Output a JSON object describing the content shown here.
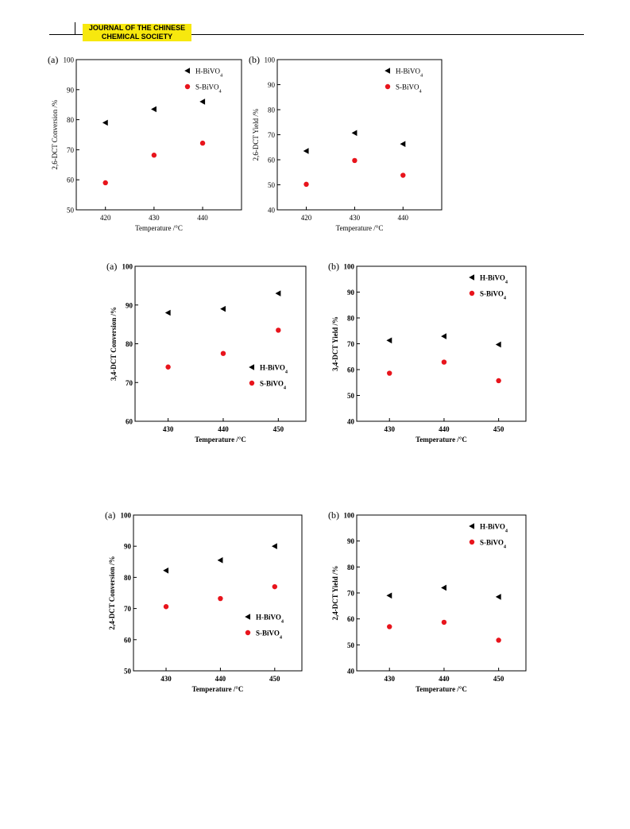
{
  "header": {
    "journal_line1": "JOURNAL OF THE CHINESE",
    "journal_line2": "CHEMICAL SOCIETY"
  },
  "colors": {
    "h_marker": "#000000",
    "s_marker": "#e8141c",
    "badge": "#f7e80e"
  },
  "chart_data": [
    {
      "panel": "(a)",
      "type": "scatter",
      "xlabel": "Temperature /°C",
      "ylabel": "2,6-DCT Conversion /%",
      "x": [
        420,
        430,
        440
      ],
      "xlim": [
        414,
        448
      ],
      "xticks": [
        420,
        430,
        440
      ],
      "ylim": [
        50,
        100
      ],
      "yticks": [
        50,
        60,
        70,
        80,
        90,
        100
      ],
      "legend_pos": "top-right",
      "series": [
        {
          "name": "H-BiVO4",
          "marker": "triangle-left",
          "values": [
            79,
            83.5,
            86
          ]
        },
        {
          "name": "S-BiVO4",
          "marker": "circle",
          "values": [
            59,
            68.2,
            72.2
          ]
        }
      ]
    },
    {
      "panel": "(b)",
      "type": "scatter",
      "xlabel": "Temperature /°C",
      "ylabel": "2,6-DCT Yield /%",
      "x": [
        420,
        430,
        440
      ],
      "xlim": [
        414,
        448
      ],
      "xticks": [
        420,
        430,
        440
      ],
      "ylim": [
        40,
        100
      ],
      "yticks": [
        40,
        50,
        60,
        70,
        80,
        90,
        100
      ],
      "legend_pos": "top-right",
      "series": [
        {
          "name": "H-BiVO4",
          "marker": "triangle-left",
          "values": [
            63.5,
            70.7,
            66.3
          ]
        },
        {
          "name": "S-BiVO4",
          "marker": "circle",
          "values": [
            50.2,
            59.7,
            53.8
          ]
        }
      ]
    },
    {
      "panel": "(a)",
      "type": "scatter",
      "xlabel": "Temperature /°C",
      "ylabel": "3,4-DCT Conversion /%",
      "x": [
        430,
        440,
        450
      ],
      "xlim": [
        424,
        455
      ],
      "xticks": [
        430,
        440,
        450
      ],
      "ylim": [
        60,
        100
      ],
      "yticks": [
        60,
        70,
        80,
        90,
        100
      ],
      "legend_pos": "bottom-right",
      "series": [
        {
          "name": "H-BiVO4",
          "marker": "triangle-left",
          "values": [
            88,
            89,
            93
          ]
        },
        {
          "name": "S-BiVO4",
          "marker": "circle",
          "values": [
            74,
            77.5,
            83.5
          ]
        }
      ]
    },
    {
      "panel": "(b)",
      "type": "scatter",
      "xlabel": "Temperature /°C",
      "ylabel": "3,4-DCT Yield /%",
      "x": [
        430,
        440,
        450
      ],
      "xlim": [
        424,
        455
      ],
      "xticks": [
        430,
        440,
        450
      ],
      "ylim": [
        40,
        100
      ],
      "yticks": [
        40,
        50,
        60,
        70,
        80,
        90,
        100
      ],
      "legend_pos": "top-right",
      "series": [
        {
          "name": "H-BiVO4",
          "marker": "triangle-left",
          "values": [
            71.3,
            72.9,
            69.7
          ]
        },
        {
          "name": "S-BiVO4",
          "marker": "circle",
          "values": [
            58.6,
            62.9,
            55.7
          ]
        }
      ]
    },
    {
      "panel": "(a)",
      "type": "scatter",
      "xlabel": "Temperature /°C",
      "ylabel": "2,4-DCT Conversion /%",
      "x": [
        430,
        440,
        450
      ],
      "xlim": [
        424,
        455
      ],
      "xticks": [
        430,
        440,
        450
      ],
      "ylim": [
        50,
        100
      ],
      "yticks": [
        50,
        60,
        70,
        80,
        90,
        100
      ],
      "legend_pos": "bottom-right",
      "series": [
        {
          "name": "H-BiVO4",
          "marker": "triangle-left",
          "values": [
            82.2,
            85.5,
            90
          ]
        },
        {
          "name": "S-BiVO4",
          "marker": "circle",
          "values": [
            70.6,
            73.2,
            77
          ]
        }
      ]
    },
    {
      "panel": "(b)",
      "type": "scatter",
      "xlabel": "Temperature /°C",
      "ylabel": "2,4-DCT Yield /%",
      "x": [
        430,
        440,
        450
      ],
      "xlim": [
        424,
        455
      ],
      "xticks": [
        430,
        440,
        450
      ],
      "ylim": [
        40,
        100
      ],
      "yticks": [
        40,
        50,
        60,
        70,
        80,
        90,
        100
      ],
      "legend_pos": "top-right",
      "series": [
        {
          "name": "H-BiVO4",
          "marker": "triangle-left",
          "values": [
            69,
            72,
            68.5
          ]
        },
        {
          "name": "S-BiVO4",
          "marker": "circle",
          "values": [
            57,
            58.7,
            51.8
          ]
        }
      ]
    }
  ]
}
